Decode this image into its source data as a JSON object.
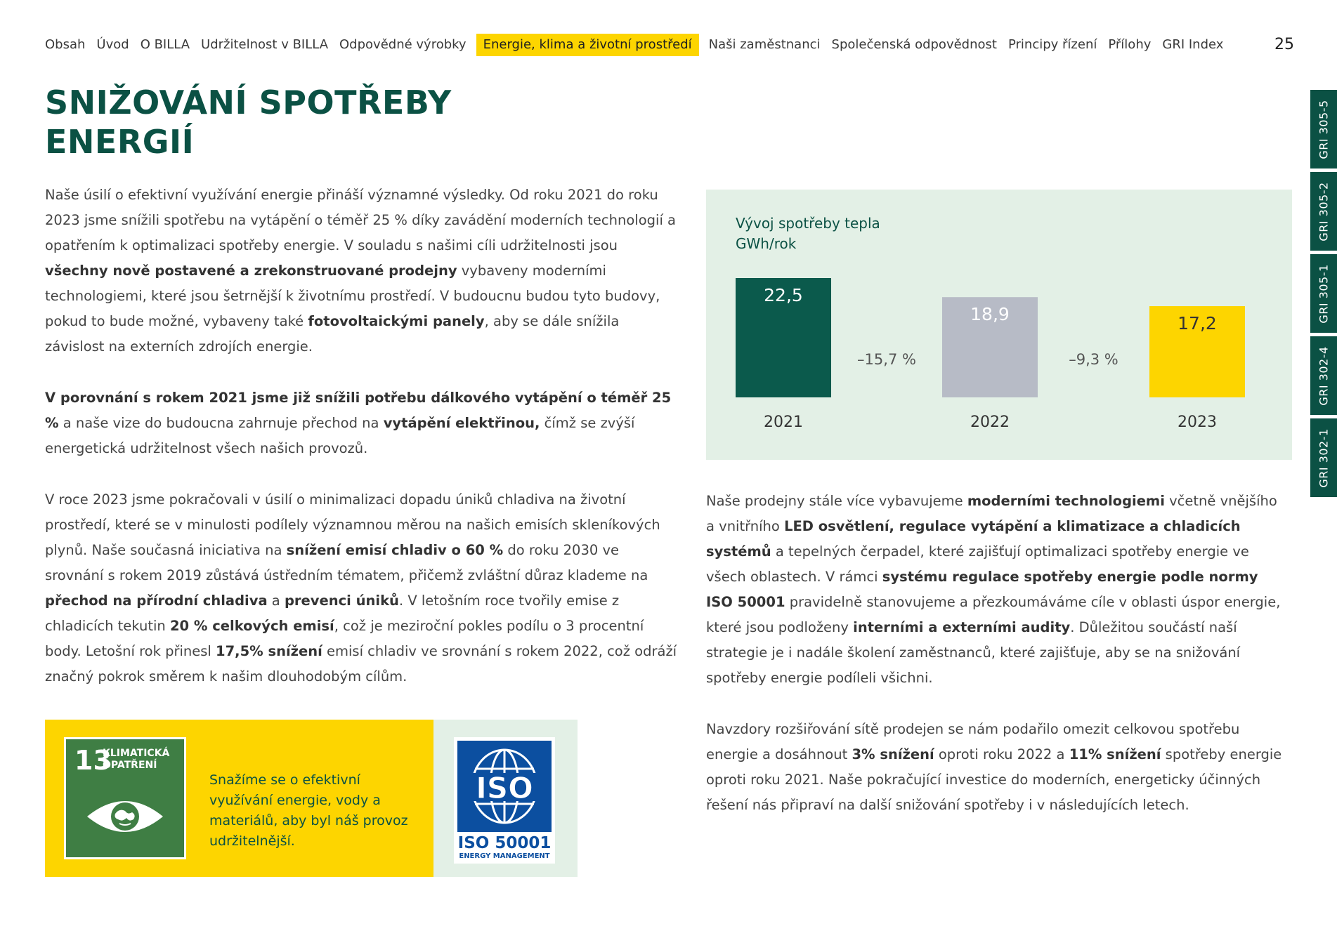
{
  "nav": {
    "items": [
      {
        "label": "Obsah"
      },
      {
        "label": "Úvod"
      },
      {
        "label": "O BILLA"
      },
      {
        "label": "Udržitelnost v BILLA"
      },
      {
        "label": "Odpovědné výrobky"
      },
      {
        "label": "Energie, klima a životní prostředí",
        "active": true
      },
      {
        "label": "Naši zaměstnanci"
      },
      {
        "label": "Společenská odpovědnost"
      },
      {
        "label": "Principy řízení"
      },
      {
        "label": "Přílohy"
      },
      {
        "label": "GRI Index"
      }
    ],
    "page_number": "25"
  },
  "title": {
    "line1": "SNIŽOVÁNÍ SPOTŘEBY",
    "line2": "ENERGIÍ"
  },
  "left": {
    "p1": [
      {
        "t": "Naše úsilí o efektivní využívání energie přináší významné výsledky. Od roku 2021 do roku 2023 jsme snížili spotřebu na vytápění o téměř 25 % díky zavádění moderních technologií a opatřením k optimalizaci spotřeby energie. V souladu s našimi cíli udržitelnosti jsou "
      },
      {
        "t": "všechny nově postavené a zrekonstruované prodejny",
        "b": true
      },
      {
        "t": " vybaveny moderními technologiemi, které jsou šetrnější k životnímu prostředí. V budoucnu budou tyto budovy, pokud to bude možné, vybaveny také "
      },
      {
        "t": "fotovoltaickými panely",
        "b": true
      },
      {
        "t": ", aby se dále snížila závislost na externích zdrojích energie."
      }
    ],
    "p2": [
      {
        "t": "V porovnání s rokem 2021 jsme již snížili potřebu dálkového vytápění o téměř 25 %",
        "b": true
      },
      {
        "t": " a naše vize do budoucna zahrnuje přechod na "
      },
      {
        "t": "vytápění elektřinou,",
        "b": true
      },
      {
        "t": " čímž se zvýší energetická udržitelnost všech našich provozů."
      }
    ],
    "p3": [
      {
        "t": "V roce 2023 jsme pokračovali v úsilí o minimalizaci dopadu úniků chladiva na životní prostředí, které se v minulosti podílely významnou měrou na našich emisích skleníkových plynů. Naše současná iniciativa na "
      },
      {
        "t": "snížení emisí chladiv o 60 %",
        "b": true
      },
      {
        "t": " do roku 2030 ve srovnání s rokem 2019 zůstává ústředním tématem, přičemž zvláštní důraz klademe na "
      },
      {
        "t": "přechod na přírodní chladiva",
        "b": true
      },
      {
        "t": " a "
      },
      {
        "t": "prevenci úniků",
        "b": true
      },
      {
        "t": ". V letošním roce tvořily emise z chladicích tekutin "
      },
      {
        "t": "20 % celkových emisí",
        "b": true
      },
      {
        "t": ", což je meziroční pokles podílu o 3 procentní body. Letošní rok přinesl "
      },
      {
        "t": "17,5% snížení",
        "b": true
      },
      {
        "t": " emisí chladiv ve srovnání s rokem 2022, což odráží značný pokrok směrem k našim dlouhodobým cílům."
      }
    ]
  },
  "right": {
    "p4": [
      {
        "t": "Naše prodejny stále více vybavujeme "
      },
      {
        "t": "moderními technologiemi",
        "b": true
      },
      {
        "t": " včetně vnějšího a vnitřního "
      },
      {
        "t": "LED osvětlení, regulace vytápění a klimatizace a chladicích systémů",
        "b": true
      },
      {
        "t": " a tepelných čerpadel, které zajišťují optimalizaci spotřeby energie ve všech oblastech. V rámci "
      },
      {
        "t": "systému regulace spotřeby energie podle normy ISO 50001",
        "b": true
      },
      {
        "t": " pravidelně stanovujeme a přezkoumáváme cíle v oblasti úspor energie, které jsou podloženy "
      },
      {
        "t": "interními a externími audity",
        "b": true
      },
      {
        "t": ". Důležitou součástí naší strategie je i nadále školení zaměstnanců, které zajišťuje, aby se na snižování spotřeby energie podíleli všichni."
      }
    ],
    "p5": [
      {
        "t": "Navzdory rozšiřování sítě prodejen se nám podařilo omezit celkovou spotřebu energie a dosáhnout "
      },
      {
        "t": "3% snížení",
        "b": true
      },
      {
        "t": " oproti roku 2022 a "
      },
      {
        "t": "11% snížení",
        "b": true
      },
      {
        "t": " spotřeby energie oproti roku 2021. Naše pokračující investice do moderních, energeticky účinných řešení nás připraví na další snižování spotřeby i v následujících letech."
      }
    ]
  },
  "chart_data": {
    "type": "bar",
    "title": "Vývoj spotřeby tepla",
    "unit": "GWh/rok",
    "categories": [
      "2021",
      "2022",
      "2023"
    ],
    "values": [
      22.5,
      18.9,
      17.2
    ],
    "value_labels": [
      "22,5",
      "18,9",
      "17,2"
    ],
    "colors": [
      "#0b5a4c",
      "#b7bbc6",
      "#fdd500"
    ],
    "label_colors": [
      "#ffffff",
      "#ffffff",
      "#333333"
    ],
    "changes": [
      "–15,7 %",
      "–9,3 %"
    ],
    "ylim": [
      0,
      22.5
    ],
    "grid": false,
    "legend": "none"
  },
  "gri_tabs": [
    "GRI 305-5",
    "GRI 305-2",
    "GRI 305-1",
    "GRI 302-4",
    "GRI 302-1"
  ],
  "sdg": {
    "number": "13",
    "label": "KLIMATICKÁ OPATŘENÍ",
    "text": "Snažíme se o efektivní využívání energie, vody a materiálů, aby byl náš provoz udržitelnější.",
    "icon": "eye-earth-icon"
  },
  "iso": {
    "logo_text": "ISO",
    "caption": "ISO 50001",
    "subcaption": "ENERGY MANAGEMENT",
    "icon": "globe-icon"
  }
}
